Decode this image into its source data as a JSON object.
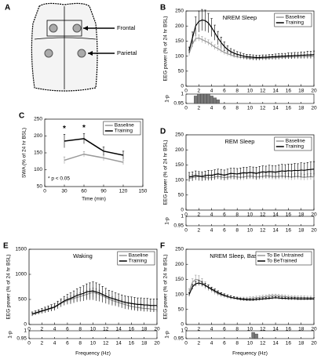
{
  "diagram": {
    "panel": "A",
    "labels": [
      "Frontal",
      "Parietal"
    ]
  },
  "chart_data": [
    {
      "type": "line",
      "panel": "B",
      "title": "NREM Sleep",
      "ylabel": "EEG power (% of 24 hr BSL)",
      "legend": "upper right",
      "x": [
        0.5,
        1,
        1.5,
        2,
        2.5,
        3,
        3.5,
        4,
        4.5,
        5,
        5.5,
        6,
        6.5,
        7,
        7.5,
        8,
        8.5,
        9,
        9.5,
        10,
        10.5,
        11,
        11.5,
        12,
        12.5,
        13,
        13.5,
        14,
        14.5,
        15,
        15.5,
        16,
        16.5,
        17,
        17.5,
        18,
        18.5,
        19,
        19.5,
        20
      ],
      "xlim": [
        0,
        20
      ],
      "xticks": [
        0,
        2,
        4,
        6,
        8,
        10,
        12,
        14,
        16,
        18,
        20
      ],
      "ylim": [
        0,
        250
      ],
      "yticks": [
        0,
        50,
        100,
        150,
        200,
        250
      ],
      "series": [
        {
          "name": "Baseline",
          "color": "#999999",
          "values": [
            110,
            140,
            158,
            160,
            155,
            150,
            145,
            138,
            130,
            125,
            118,
            112,
            108,
            104,
            100,
            98,
            96,
            95,
            94,
            93,
            92,
            92,
            92,
            93,
            93,
            94,
            94,
            95,
            95,
            96,
            96,
            97,
            97,
            98,
            98,
            98,
            99,
            99,
            100,
            100
          ],
          "errors": [
            8,
            10,
            10,
            10,
            10,
            9,
            9,
            8,
            8,
            8,
            7,
            7,
            7,
            6,
            6,
            6,
            6,
            6,
            6,
            6,
            6,
            6,
            6,
            6,
            6,
            6,
            6,
            6,
            6,
            6,
            6,
            6,
            6,
            6,
            6,
            6,
            6,
            6,
            6,
            6
          ]
        },
        {
          "name": "Training",
          "color": "#000000",
          "values": [
            120,
            160,
            200,
            215,
            220,
            218,
            210,
            195,
            178,
            160,
            145,
            132,
            122,
            115,
            110,
            106,
            103,
            100,
            98,
            97,
            96,
            95,
            95,
            96,
            96,
            97,
            98,
            98,
            99,
            100,
            100,
            101,
            101,
            102,
            102,
            103,
            103,
            104,
            104,
            105
          ],
          "errors": [
            10,
            20,
            30,
            35,
            35,
            35,
            32,
            30,
            25,
            22,
            18,
            15,
            12,
            10,
            10,
            9,
            9,
            8,
            8,
            8,
            8,
            8,
            8,
            8,
            8,
            8,
            8,
            9,
            9,
            9,
            9,
            10,
            10,
            10,
            10,
            11,
            11,
            12,
            12,
            12
          ]
        }
      ],
      "strip": {
        "ylabel": "1-p",
        "ylim": [
          0.95,
          1
        ],
        "yticks": [
          1,
          0.95
        ],
        "x": [
          1.5,
          2,
          2.5,
          3,
          3.5,
          4,
          4.5,
          5
        ],
        "values": [
          0.99,
          1,
          1,
          1,
          1,
          0.99,
          0.98,
          0.97
        ]
      }
    },
    {
      "type": "line",
      "panel": "C",
      "ylabel": "SWA (% of 24 hr BSL)",
      "xlabel": "Time (min)",
      "legend": "upper right",
      "x": [
        30,
        60,
        90,
        120
      ],
      "xlim": [
        0,
        150
      ],
      "xticks": [
        0,
        30,
        60,
        90,
        120,
        150
      ],
      "ylim": [
        50,
        250
      ],
      "yticks": [
        50,
        100,
        150,
        200,
        250
      ],
      "series": [
        {
          "name": "Baseline",
          "color": "#999999",
          "values": [
            128,
            146,
            135,
            122
          ],
          "errors": [
            10,
            8,
            8,
            7
          ]
        },
        {
          "name": "Training",
          "color": "#000000",
          "values": [
            185,
            192,
            155,
            143
          ],
          "errors": [
            20,
            15,
            12,
            12
          ]
        }
      ],
      "annotations": [
        "*",
        "*",
        "* p < 0.05"
      ]
    },
    {
      "type": "line",
      "panel": "D",
      "title": "REM Sleep",
      "ylabel": "EEG power (% of 24 hr BSL)",
      "legend": "upper right",
      "x": [
        0.5,
        1,
        1.5,
        2,
        2.5,
        3,
        3.5,
        4,
        4.5,
        5,
        5.5,
        6,
        6.5,
        7,
        7.5,
        8,
        8.5,
        9,
        9.5,
        10,
        10.5,
        11,
        11.5,
        12,
        12.5,
        13,
        13.5,
        14,
        14.5,
        15,
        15.5,
        16,
        16.5,
        17,
        17.5,
        18,
        18.5,
        19,
        19.5,
        20
      ],
      "xlim": [
        0,
        20
      ],
      "xticks": [
        0,
        2,
        4,
        6,
        8,
        10,
        12,
        14,
        16,
        18,
        20
      ],
      "ylim": [
        0,
        250
      ],
      "yticks": [
        0,
        50,
        100,
        150,
        200,
        250
      ],
      "series": [
        {
          "name": "Baseline",
          "color": "#999999",
          "values": [
            105,
            108,
            110,
            112,
            110,
            108,
            107,
            108,
            110,
            112,
            110,
            108,
            109,
            111,
            112,
            110,
            109,
            110,
            112,
            113,
            112,
            110,
            111,
            112,
            114,
            113,
            112,
            111,
            112,
            113,
            112,
            111,
            110,
            111,
            112,
            110,
            109,
            110,
            111,
            110
          ],
          "errors": [
            10,
            10,
            10,
            10,
            10,
            10,
            10,
            10,
            10,
            10,
            10,
            10,
            10,
            10,
            10,
            10,
            10,
            10,
            10,
            10,
            10,
            10,
            10,
            10,
            10,
            10,
            10,
            10,
            10,
            10,
            10,
            10,
            10,
            10,
            10,
            10,
            10,
            10,
            10,
            10
          ]
        },
        {
          "name": "Training",
          "color": "#000000",
          "values": [
            110,
            112,
            115,
            113,
            112,
            114,
            116,
            115,
            118,
            120,
            118,
            116,
            119,
            122,
            121,
            120,
            122,
            124,
            123,
            125,
            124,
            122,
            125,
            127,
            126,
            128,
            127,
            126,
            128,
            130,
            129,
            131,
            130,
            132,
            131,
            133,
            132,
            134,
            135,
            136
          ],
          "errors": [
            15,
            15,
            15,
            15,
            15,
            15,
            16,
            16,
            16,
            16,
            17,
            17,
            17,
            17,
            18,
            18,
            18,
            18,
            19,
            19,
            19,
            20,
            20,
            20,
            20,
            21,
            21,
            21,
            22,
            22,
            22,
            22,
            23,
            23,
            23,
            24,
            24,
            24,
            25,
            25
          ]
        }
      ],
      "strip": {
        "ylabel": "1-p",
        "ylim": [
          0.95,
          1
        ],
        "yticks": [
          1,
          0.95
        ],
        "x": [],
        "values": []
      }
    },
    {
      "type": "line",
      "panel": "E",
      "title": "Waking",
      "ylabel": "EEG power (% of 24 hr BSL)",
      "xlabel": "Frequency (Hz)",
      "legend": "upper right",
      "x": [
        0.5,
        1,
        1.5,
        2,
        2.5,
        3,
        3.5,
        4,
        4.5,
        5,
        5.5,
        6,
        6.5,
        7,
        7.5,
        8,
        8.5,
        9,
        9.5,
        10,
        10.5,
        11,
        11.5,
        12,
        12.5,
        13,
        13.5,
        14,
        14.5,
        15,
        15.5,
        16,
        16.5,
        17,
        17.5,
        18,
        18.5,
        19,
        19.5,
        20
      ],
      "xlim": [
        0,
        20
      ],
      "xticks": [
        0,
        2,
        4,
        6,
        8,
        10,
        12,
        14,
        16,
        18,
        20
      ],
      "ylim": [
        0,
        1500
      ],
      "yticks": [
        0,
        500,
        1000,
        1500
      ],
      "series": [
        {
          "name": "Baseline",
          "color": "#999999",
          "values": [
            200,
            220,
            240,
            260,
            280,
            300,
            320,
            340,
            380,
            420,
            450,
            480,
            500,
            520,
            540,
            560,
            580,
            600,
            620,
            640,
            620,
            600,
            570,
            540,
            510,
            480,
            460,
            440,
            420,
            400,
            380,
            360,
            350,
            340,
            330,
            320,
            320,
            310,
            300,
            300
          ],
          "errors": [
            30,
            30,
            35,
            35,
            40,
            40,
            45,
            45,
            50,
            55,
            60,
            60,
            65,
            70,
            70,
            75,
            80,
            80,
            85,
            90,
            90,
            85,
            80,
            80,
            75,
            70,
            70,
            65,
            65,
            60,
            60,
            55,
            55,
            55,
            50,
            50,
            50,
            50,
            50,
            50
          ]
        },
        {
          "name": "Training",
          "color": "#000000",
          "values": [
            210,
            230,
            250,
            270,
            290,
            310,
            330,
            350,
            390,
            430,
            470,
            500,
            520,
            550,
            580,
            600,
            620,
            650,
            660,
            670,
            650,
            630,
            600,
            570,
            540,
            520,
            500,
            480,
            460,
            440,
            430,
            420,
            410,
            400,
            400,
            390,
            390,
            380,
            380,
            380
          ],
          "errors": [
            40,
            40,
            45,
            50,
            55,
            60,
            65,
            70,
            75,
            80,
            90,
            100,
            110,
            120,
            130,
            140,
            150,
            160,
            170,
            180,
            180,
            170,
            160,
            150,
            140,
            140,
            130,
            130,
            130,
            130,
            130,
            130,
            130,
            130,
            130,
            130,
            130,
            130,
            130,
            130
          ]
        }
      ],
      "strip": {
        "ylabel": "1-p",
        "ylim": [
          0.95,
          1
        ],
        "yticks": [
          1,
          0.95
        ],
        "x": [],
        "values": []
      }
    },
    {
      "type": "line",
      "panel": "F",
      "title": "NREM Sleep, Baseline",
      "ylabel": "EEG power (% of 24 hr BSL)",
      "xlabel": "Frequency (Hz)",
      "legend": "upper right",
      "x": [
        0.5,
        1,
        1.5,
        2,
        2.5,
        3,
        3.5,
        4,
        4.5,
        5,
        5.5,
        6,
        6.5,
        7,
        7.5,
        8,
        8.5,
        9,
        9.5,
        10,
        10.5,
        11,
        11.5,
        12,
        12.5,
        13,
        13.5,
        14,
        14.5,
        15,
        15.5,
        16,
        16.5,
        17,
        17.5,
        18,
        18.5,
        19,
        19.5,
        20
      ],
      "xlim": [
        0,
        20
      ],
      "xticks": [
        0,
        2,
        4,
        6,
        8,
        10,
        12,
        14,
        16,
        18,
        20
      ],
      "ylim": [
        0,
        250
      ],
      "yticks": [
        0,
        50,
        100,
        150,
        200,
        250
      ],
      "series": [
        {
          "name": "To Be Untrained",
          "color": "#999999",
          "values": [
            110,
            140,
            150,
            148,
            140,
            130,
            122,
            115,
            108,
            102,
            98,
            95,
            93,
            90,
            88,
            87,
            86,
            86,
            86,
            87,
            88,
            89,
            90,
            92,
            93,
            95,
            96,
            96,
            95,
            94,
            93,
            92,
            91,
            91,
            90,
            90,
            90,
            89,
            89,
            89
          ],
          "errors": [
            8,
            12,
            14,
            14,
            13,
            12,
            10,
            9,
            8,
            7,
            7,
            6,
            6,
            6,
            5,
            5,
            5,
            5,
            5,
            5,
            5,
            5,
            5,
            5,
            5,
            5,
            5,
            5,
            5,
            5,
            5,
            5,
            5,
            5,
            5,
            5,
            5,
            5,
            5,
            5
          ]
        },
        {
          "name": "To BeTrained",
          "color": "#000000",
          "values": [
            100,
            125,
            135,
            138,
            135,
            130,
            124,
            118,
            112,
            106,
            101,
            97,
            93,
            90,
            88,
            86,
            84,
            83,
            82,
            82,
            82,
            83,
            84,
            85,
            86,
            87,
            88,
            89,
            88,
            87,
            87,
            86,
            86,
            86,
            85,
            85,
            85,
            85,
            85,
            85
          ],
          "errors": [
            6,
            8,
            8,
            8,
            8,
            7,
            7,
            6,
            6,
            6,
            5,
            5,
            5,
            5,
            4,
            4,
            4,
            4,
            4,
            4,
            4,
            4,
            4,
            4,
            4,
            4,
            4,
            4,
            4,
            4,
            4,
            4,
            4,
            4,
            4,
            4,
            4,
            4,
            4,
            4
          ]
        }
      ],
      "strip": {
        "ylabel": "1-p",
        "ylim": [
          0.95,
          1
        ],
        "yticks": [
          1,
          0.95
        ],
        "x": [
          10.5,
          11
        ],
        "values": [
          0.99,
          0.98
        ]
      }
    }
  ]
}
